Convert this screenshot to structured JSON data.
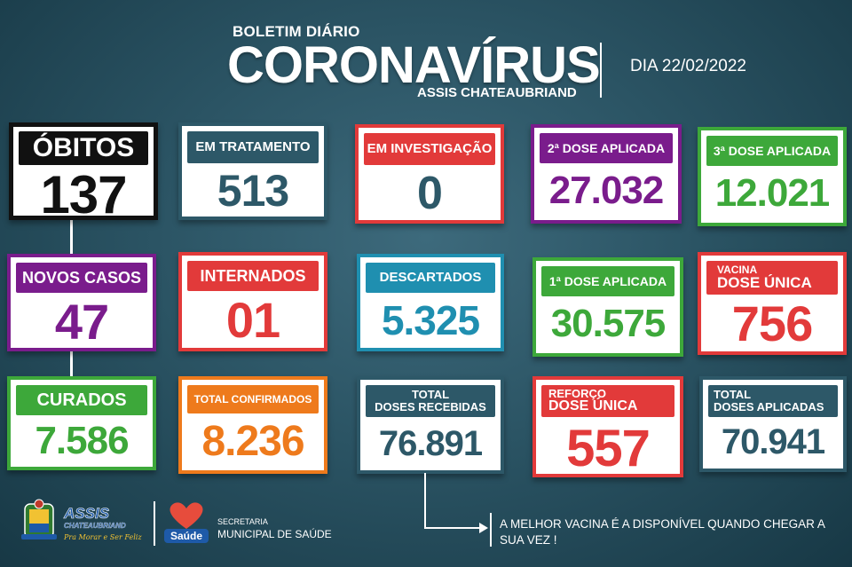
{
  "header": {
    "subtitle": "BOLETIM DIÁRIO",
    "title": "CORONAVÍRUS",
    "city": "ASSIS CHATEAUBRIAND",
    "date": "DIA 22/02/2022"
  },
  "cards": {
    "obitos": {
      "label": "ÓBITOS",
      "value": "137",
      "color": "#111111"
    },
    "em_tratamento": {
      "label": "EM TRATAMENTO",
      "value": "513",
      "color": "#2d5868"
    },
    "em_investigacao": {
      "label": "EM INVESTIGAÇÃO",
      "value": "0",
      "color": "#e23a3a"
    },
    "segunda_dose": {
      "label": "2ª DOSE APLICADA",
      "value": "27.032",
      "color": "#7a1c8c"
    },
    "terceira_dose": {
      "label": "3ª DOSE APLICADA",
      "value": "12.021",
      "color": "#3da83a"
    },
    "novos_casos": {
      "label": "NOVOS CASOS",
      "value": "47",
      "color": "#7a1c8c"
    },
    "internados": {
      "label": "INTERNADOS",
      "value": "01",
      "color": "#e23a3a"
    },
    "descartados": {
      "label": "DESCARTADOS",
      "value": "5.325",
      "color": "#1f8fb0"
    },
    "primeira_dose": {
      "label": "1ª DOSE APLICADA",
      "value": "30.575",
      "color": "#3da83a"
    },
    "dose_unica": {
      "label_line1": "VACINA",
      "label_line2": "DOSE ÚNICA",
      "value": "756",
      "color": "#e23a3a"
    },
    "curados": {
      "label": "CURADOS",
      "value": "7.586",
      "color": "#3da83a"
    },
    "total_confirmados": {
      "label": "TOTAL CONFIRMADOS",
      "value": "8.236",
      "color": "#ee7a1c"
    },
    "doses_recebidas": {
      "label_line1": "TOTAL",
      "label_line2": "DOSES RECEBIDAS",
      "value": "76.891",
      "color": "#2d5868"
    },
    "reforco": {
      "label_line1": "REFORÇO",
      "label_line2": "DOSE ÚNICA",
      "value": "557",
      "color": "#e23a3a"
    },
    "doses_aplicadas": {
      "label_line1": "TOTAL",
      "label_line2": "DOSES APLICADAS",
      "value": "70.941",
      "color": "#2d5868"
    }
  },
  "footer": {
    "message": "A MELHOR VACINA É A DISPONÍVEL QUANDO CHEGAR A SUA VEZ !",
    "logo_name": "ASSIS",
    "logo_subname": "CHATEAUBRIAND",
    "logo_slogan": "Pra Morar e Ser Feliz",
    "saude_logo_text": "Saúde",
    "secretaria_line1": "SECRETARIA",
    "secretaria_line2": "MUNICIPAL DE SAÚDE"
  }
}
